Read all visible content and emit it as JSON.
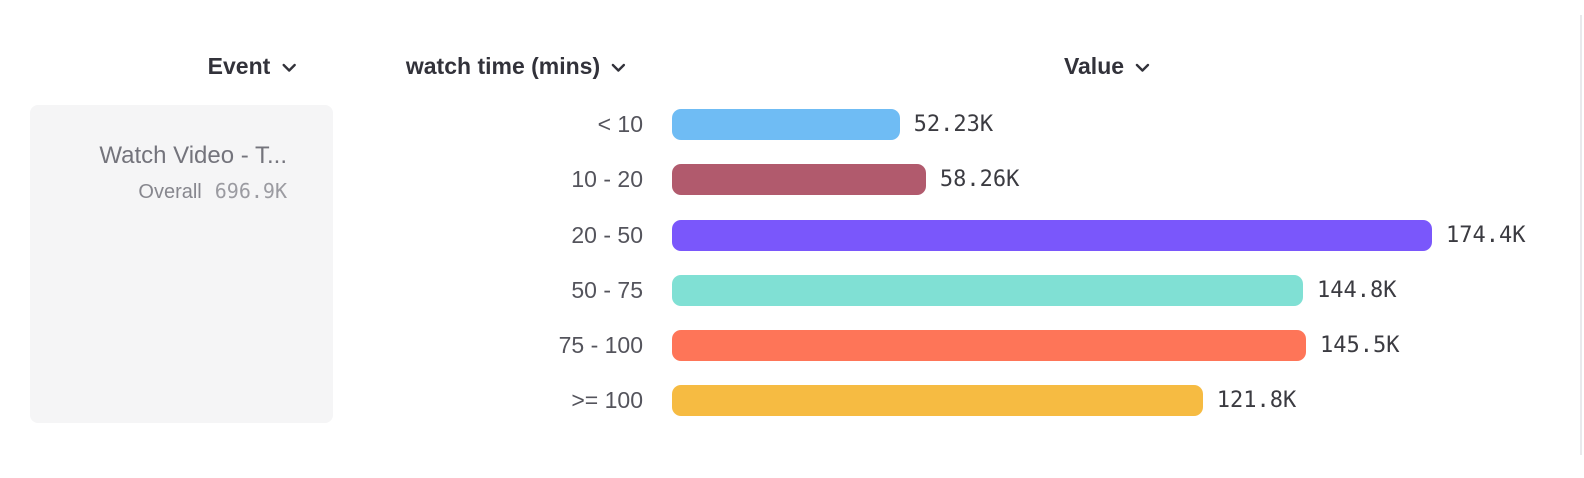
{
  "header": {
    "columns": [
      {
        "label": "Event"
      },
      {
        "label": "watch time (mins)"
      },
      {
        "label": "Value"
      }
    ]
  },
  "event_card": {
    "title": "Watch Video - T...",
    "overall_label": "Overall",
    "overall_value": "696.9K"
  },
  "chart_data": {
    "type": "bar",
    "orientation": "horizontal",
    "title": "",
    "category_axis_label": "watch time (mins)",
    "value_axis_label": "Value",
    "categories": [
      "< 10",
      "10 - 20",
      "20 - 50",
      "50 - 75",
      "75 - 100",
      ">= 100"
    ],
    "values": [
      52230,
      58260,
      174400,
      144800,
      145500,
      121800
    ],
    "value_labels": [
      "52.23K",
      "58.26K",
      "174.4K",
      "144.8K",
      "145.5K",
      "121.8K"
    ],
    "bar_colors": [
      "#6fbcf4",
      "#b15a6d",
      "#7a57fb",
      "#80e0d4",
      "#fe7558",
      "#f6bb42"
    ],
    "value_axis_max": 174400,
    "grid": false,
    "legend": false
  },
  "colors": {
    "header_text": "#32323a",
    "category_label": "#54545c",
    "value_label": "#3b3b41",
    "card_bg": "#f5f5f6",
    "card_title": "#74747c",
    "divider": "#e9e9ec"
  }
}
